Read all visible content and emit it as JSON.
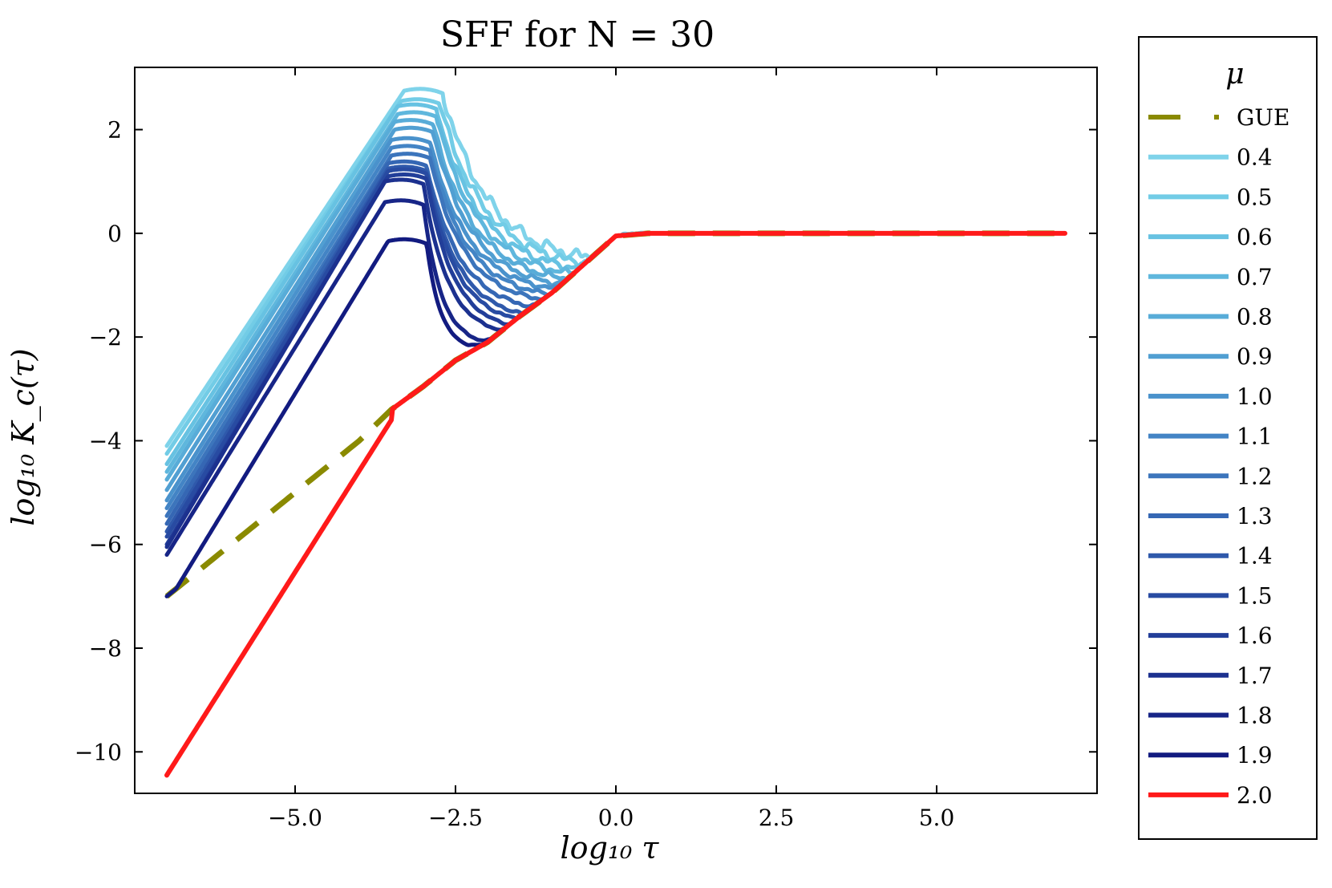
{
  "chart_data": {
    "type": "line",
    "title": "SFF for N = 30",
    "xlabel": "log₁₀ τ",
    "ylabel": "log₁₀ K_c(τ)",
    "xlim": [
      -7.5,
      7.5
    ],
    "ylim": [
      -10.8,
      3.2
    ],
    "xticks": [
      -5.0,
      -2.5,
      0.0,
      2.5,
      5.0
    ],
    "xtick_labels": [
      "−5.0",
      "−2.5",
      "0.0",
      "2.5",
      "5.0"
    ],
    "yticks": [
      -10,
      -8,
      -6,
      -4,
      -2,
      0,
      2
    ],
    "ytick_labels": [
      "−10",
      "−8",
      "−6",
      "−4",
      "−2",
      "0",
      "2"
    ],
    "legend_title": "μ",
    "legend_position": "outside-right",
    "gue": {
      "name": "GUE",
      "color": "#8a8a00",
      "style": "dashed",
      "x": [
        -7.0,
        -6.0,
        -5.0,
        -4.0,
        -3.5,
        -3.0,
        -2.5,
        -2.0,
        -1.5,
        -1.0,
        -0.5,
        0.0,
        0.5,
        1.0,
        2.0,
        3.0,
        4.0,
        5.0,
        6.0,
        7.0
      ],
      "y": [
        -7.0,
        -6.0,
        -5.0,
        -4.0,
        -3.4,
        -2.95,
        -2.45,
        -2.1,
        -1.6,
        -1.15,
        -0.6,
        -0.05,
        0.0,
        0.0,
        0.0,
        0.0,
        0.0,
        0.0,
        0.0,
        0.0
      ]
    },
    "series": [
      {
        "name": "0.4",
        "color": "#7fd3ea",
        "start_y": -4.1,
        "peak_x": -3.0,
        "peak_y": 2.75,
        "dip_y": -0.45,
        "dip_x": -0.5,
        "decay": 1.25,
        "noise": 0.14
      },
      {
        "name": "0.5",
        "color": "#72cce6",
        "start_y": -4.25,
        "peak_x": -3.05,
        "peak_y": 2.55,
        "dip_y": -0.55,
        "dip_x": -0.6,
        "decay": 1.15,
        "noise": 0.11
      },
      {
        "name": "0.6",
        "color": "#67c2e2",
        "start_y": -4.45,
        "peak_x": -3.1,
        "peak_y": 2.45,
        "dip_y": -0.65,
        "dip_x": -0.7,
        "decay": 1.05,
        "noise": 0.09
      },
      {
        "name": "0.7",
        "color": "#5fb7dd",
        "start_y": -4.6,
        "peak_x": -3.1,
        "peak_y": 2.3,
        "dip_y": -0.75,
        "dip_x": -0.8,
        "decay": 0.95,
        "noise": 0.08
      },
      {
        "name": "0.8",
        "color": "#58acd8",
        "start_y": -4.75,
        "peak_x": -3.15,
        "peak_y": 2.15,
        "dip_y": -0.85,
        "dip_x": -0.9,
        "decay": 0.88,
        "noise": 0.07
      },
      {
        "name": "0.9",
        "color": "#519fd2",
        "start_y": -4.95,
        "peak_x": -3.15,
        "peak_y": 2.0,
        "dip_y": -0.95,
        "dip_x": -1.0,
        "decay": 0.8,
        "noise": 0.06
      },
      {
        "name": "1.0",
        "color": "#4a92cc",
        "start_y": -5.15,
        "peak_x": -3.2,
        "peak_y": 1.8,
        "dip_y": -1.05,
        "dip_x": -1.05,
        "decay": 0.75,
        "noise": 0.05
      },
      {
        "name": "1.1",
        "color": "#4384c5",
        "start_y": -5.3,
        "peak_x": -3.2,
        "peak_y": 1.65,
        "dip_y": -1.15,
        "dip_x": -1.15,
        "decay": 0.7,
        "noise": 0.05
      },
      {
        "name": "1.2",
        "color": "#3c75bc",
        "start_y": -5.45,
        "peak_x": -3.2,
        "peak_y": 1.5,
        "dip_y": -1.25,
        "dip_x": -1.25,
        "decay": 0.65,
        "noise": 0.04
      },
      {
        "name": "1.3",
        "color": "#3567b4",
        "start_y": -5.6,
        "peak_x": -3.25,
        "peak_y": 1.35,
        "dip_y": -1.4,
        "dip_x": -1.35,
        "decay": 0.6,
        "noise": 0.04
      },
      {
        "name": "1.4",
        "color": "#2f59ab",
        "start_y": -5.75,
        "peak_x": -3.25,
        "peak_y": 1.25,
        "dip_y": -1.55,
        "dip_x": -1.45,
        "decay": 0.55,
        "noise": 0.03
      },
      {
        "name": "1.5",
        "color": "#284ba2",
        "start_y": -5.85,
        "peak_x": -3.25,
        "peak_y": 1.2,
        "dip_y": -1.65,
        "dip_x": -1.55,
        "decay": 0.5,
        "noise": 0.03
      },
      {
        "name": "1.6",
        "color": "#223e99",
        "start_y": -6.0,
        "peak_x": -3.25,
        "peak_y": 1.1,
        "dip_y": -1.75,
        "dip_x": -1.7,
        "decay": 0.48,
        "noise": 0.02
      },
      {
        "name": "1.7",
        "color": "#1c318f",
        "start_y": -6.05,
        "peak_x": -3.3,
        "peak_y": 1.0,
        "dip_y": -1.85,
        "dip_x": -1.85,
        "decay": 0.45,
        "noise": 0.02
      },
      {
        "name": "1.8",
        "color": "#172587",
        "start_y": -6.2,
        "peak_x": -3.3,
        "peak_y": 0.6,
        "dip_y": -2.05,
        "dip_x": -2.15,
        "decay": 0.4,
        "noise": 0.02
      },
      {
        "name": "1.9",
        "color": "#121b80",
        "start_y": -7.15,
        "peak_x": -3.25,
        "peak_y": -0.15,
        "dip_y": -2.15,
        "dip_x": -2.3,
        "decay": 0.38,
        "noise": 0.01
      },
      {
        "name": "2.0",
        "color": "#ff1a1a",
        "start_y": -10.45,
        "peak_x": -3.5,
        "peak_y": -3.6,
        "dip_y": -2.45,
        "dip_x": -2.5,
        "decay": 0.0,
        "noise": 0.0
      }
    ]
  }
}
